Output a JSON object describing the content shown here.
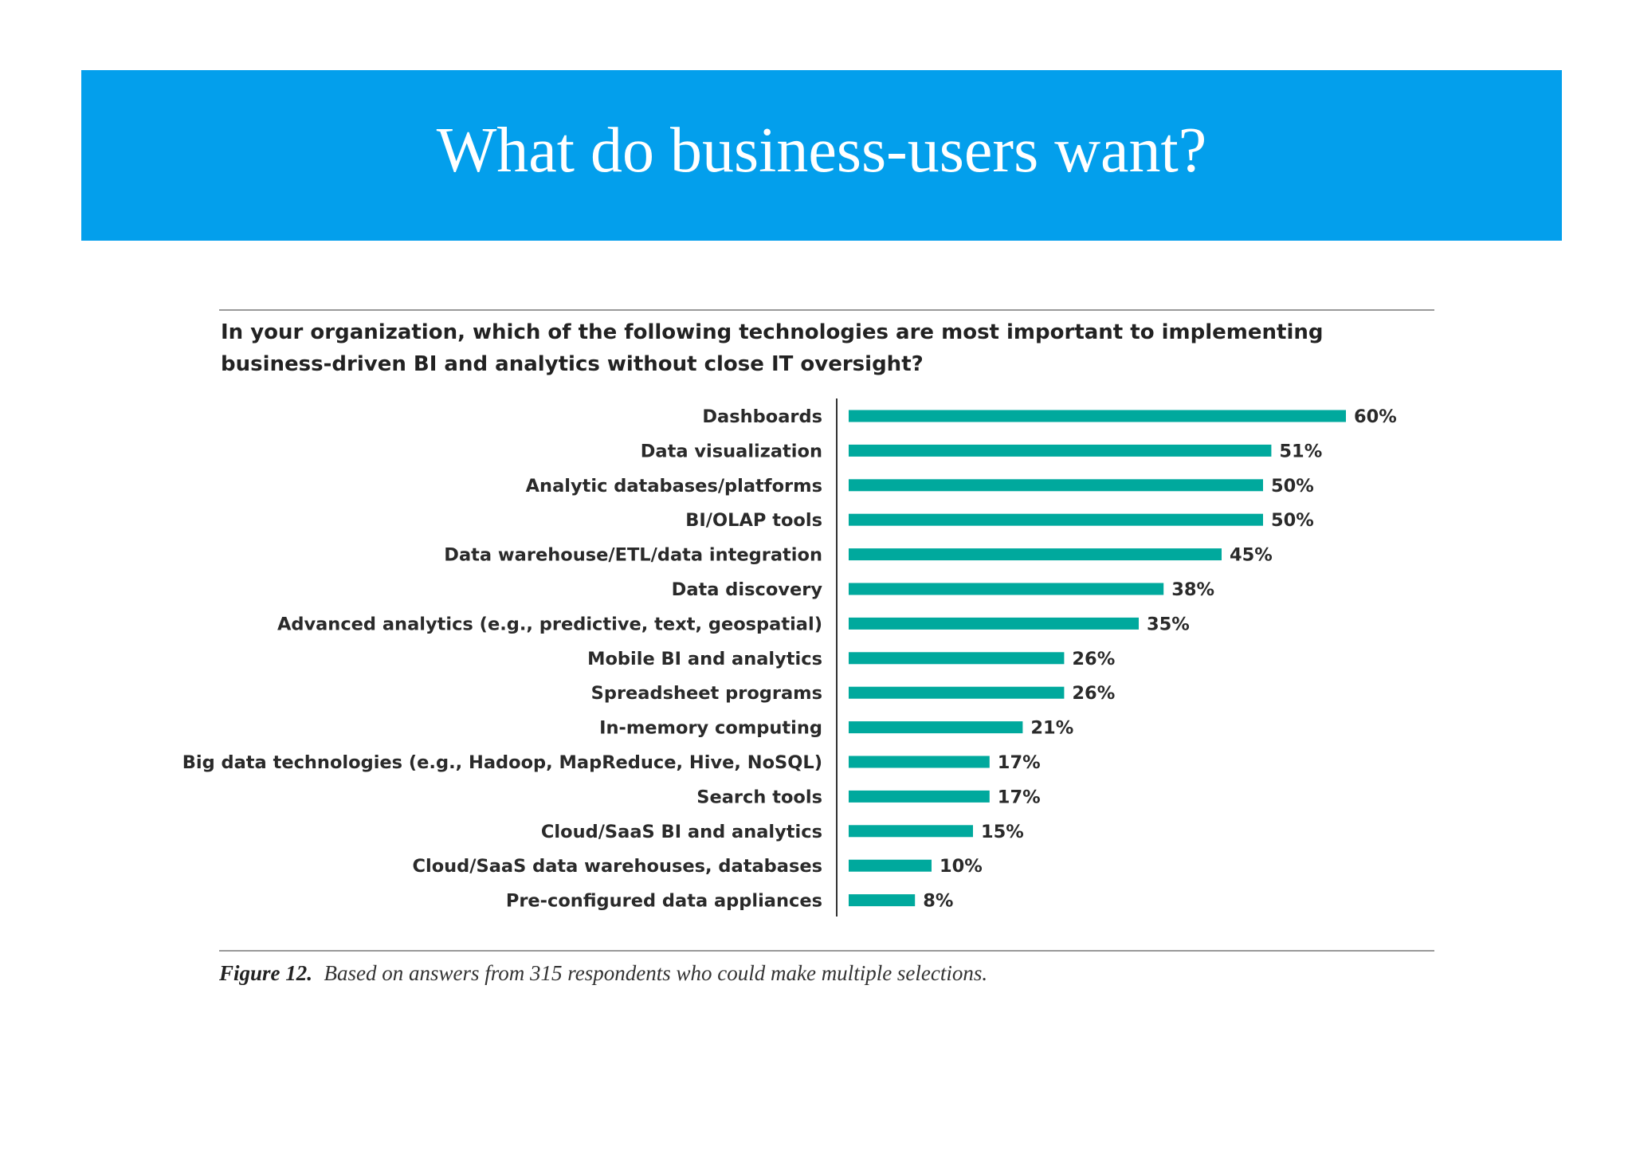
{
  "slide": {
    "title": "What do business-users want?"
  },
  "colors": {
    "banner": "#039fec",
    "bar": "#00a99d",
    "rule": "#999999",
    "axis": "#333333"
  },
  "chart_data": {
    "type": "bar",
    "orientation": "horizontal",
    "title": "In your organization, which of the following technologies are most important to implementing business-driven BI and analytics without close IT oversight?",
    "title_lines": [
      "In your organization, which of the following technologies are most important to implementing",
      "business-driven BI and analytics without close IT oversight?"
    ],
    "categories": [
      "Dashboards",
      "Data visualization",
      "Analytic databases/platforms",
      "BI/OLAP tools",
      "Data warehouse/ETL/data integration",
      "Data discovery",
      "Advanced analytics (e.g., predictive, text, geospatial)",
      "Mobile BI and analytics",
      "Spreadsheet programs",
      "In-memory computing",
      "Big data technologies (e.g., Hadoop, MapReduce, Hive, NoSQL)",
      "Search tools",
      "Cloud/SaaS BI and analytics",
      "Cloud/SaaS data warehouses, databases",
      "Pre-configured data appliances"
    ],
    "values": [
      60,
      51,
      50,
      50,
      45,
      38,
      35,
      26,
      26,
      21,
      17,
      17,
      15,
      10,
      8
    ],
    "value_suffix": "%",
    "xlim": [
      0,
      60
    ],
    "xlabel": "",
    "ylabel": "",
    "grid": false,
    "caption_figure": "Figure 12.",
    "caption_text": "Based on answers from 315 respondents who could make multiple selections."
  }
}
